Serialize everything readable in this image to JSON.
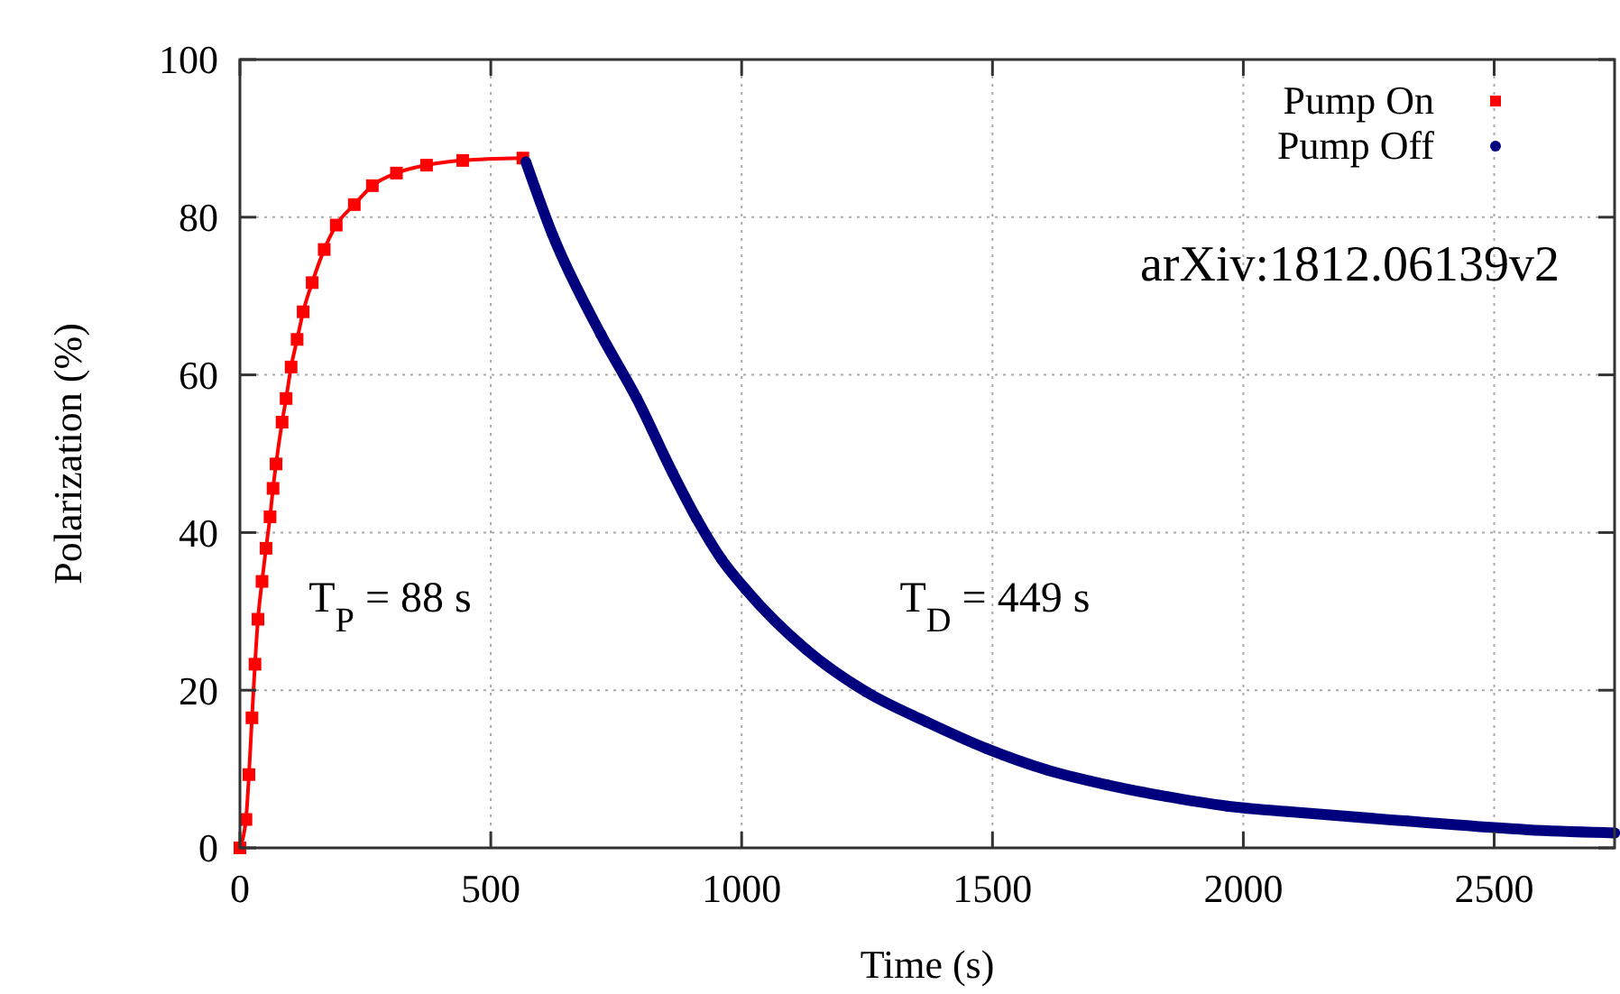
{
  "chart_data": {
    "type": "line",
    "xlabel": "Time (s)",
    "ylabel": "Polarization (%)",
    "xlim": [
      0,
      2740
    ],
    "ylim": [
      0,
      100
    ],
    "xticks": [
      0,
      500,
      1000,
      1500,
      2000,
      2500
    ],
    "yticks": [
      0,
      20,
      40,
      60,
      80,
      100
    ],
    "grid": true,
    "legend": "top right",
    "annotations": [
      "T$_{P}$ = 88 s",
      "T$_{D}$ = 449 s",
      "arXiv:1812.06139v2"
    ],
    "series": [
      {
        "name": "Pump On",
        "color": "#ff0000",
        "marker": "square",
        "x": [
          0,
          12,
          18,
          24,
          30,
          36,
          44,
          52,
          60,
          66,
          72,
          84,
          92,
          102,
          114,
          126,
          144,
          168,
          192,
          228,
          264,
          312,
          372,
          444,
          564
        ],
        "values": [
          0,
          3.6,
          9.3,
          16.5,
          23.3,
          29,
          33.8,
          38,
          42,
          45.6,
          48.7,
          54,
          57,
          61,
          64.5,
          68,
          71.7,
          75.9,
          79,
          81.6,
          84,
          85.6,
          86.6,
          87.2,
          87.5
        ]
      },
      {
        "name": "Pump Off",
        "color": "#00007f",
        "marker": "circle",
        "x": [
          570,
          623,
          719,
          791,
          863,
          910,
          960,
          1008,
          1128,
          1248,
          1368,
          1488,
          1608,
          1728,
          1848,
          1968,
          2088,
          2327,
          2567,
          2740
        ],
        "values": [
          87,
          77.8,
          65.2,
          57,
          47.5,
          41.8,
          36.6,
          32.8,
          25.2,
          19.8,
          16,
          12.6,
          9.9,
          8,
          6.5,
          5.3,
          4.6,
          3.4,
          2.3,
          1.9
        ]
      }
    ]
  }
}
